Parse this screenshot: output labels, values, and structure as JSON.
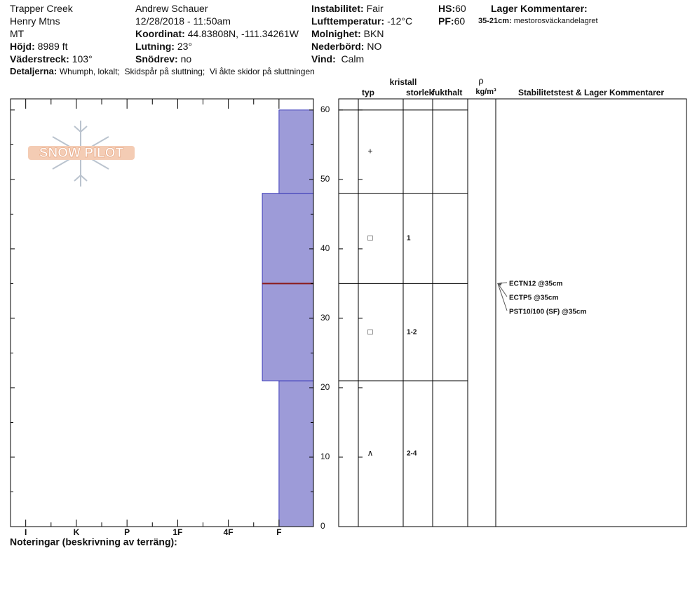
{
  "header": {
    "location": "Trapper Creek",
    "range": "Henry Mtns",
    "state": "MT",
    "elevation": {
      "label": "Höjd:",
      "value": "8989 ft"
    },
    "aspect": {
      "label": "Väderstreck:",
      "value": "103°"
    },
    "observer": "Andrew Schauer",
    "datetime": "12/28/2018 - 11:50am",
    "coordinates": {
      "label": "Koordinat:",
      "value": "44.83808N, -111.34261W"
    },
    "slope": {
      "label": "Lutning:",
      "value": "23°"
    },
    "wind_loading": {
      "label": "Snödrev:",
      "value": "no"
    },
    "stability": {
      "label": "Instabilitet:",
      "value": "Fair"
    },
    "air_temp": {
      "label": "Lufttemperatur:",
      "value": "-12°C"
    },
    "sky": {
      "label": "Molnighet:",
      "value": "BKN"
    },
    "precip": {
      "label": "Nederbörd:",
      "value": "NO"
    },
    "wind": {
      "label": "Vind:",
      "value": "Calm"
    },
    "hs": {
      "label": "HS:",
      "value": 60
    },
    "pf": {
      "label": "PF:",
      "value": 60
    },
    "layer_comments": {
      "title": "Lager Kommentarer:",
      "range": "35-21cm:",
      "text": "mestorosväckandelagret"
    },
    "details": {
      "label": "Detaljerna:",
      "value": "Whumph, lokalt;  Skidspår på sluttning;  Vi åkte skidor på sluttningen"
    }
  },
  "logo": "SNOW PILOT",
  "chart_data": {
    "type": "snow-profile",
    "ylim": [
      0,
      61.6
    ],
    "yticks": [
      0,
      10,
      20,
      30,
      40,
      50,
      60
    ],
    "yticks_minor": [
      5,
      15,
      25,
      35,
      45,
      55
    ],
    "xlim": [
      6.3,
      0.32
    ],
    "xticks": [
      {
        "value": 6,
        "label": "I"
      },
      {
        "value": 5,
        "label": "K"
      },
      {
        "value": 4,
        "label": "P"
      },
      {
        "value": 3,
        "label": "1F"
      },
      {
        "value": 2,
        "label": "4F"
      },
      {
        "value": 1,
        "label": "F"
      }
    ],
    "xticks_minor": [
      5.5,
      4.5,
      3.5,
      2.5,
      1.5
    ],
    "layer_color": "#9d9bd8",
    "edge_color": "#2020b0",
    "layers": [
      {
        "bottom": 0,
        "top": 21,
        "hardness": 1,
        "grain": "∧",
        "size": "2-4"
      },
      {
        "bottom": 21,
        "top": 35,
        "hardness": 1.33,
        "grain": "□",
        "size": "1-2"
      },
      {
        "bottom": 35,
        "top": 48,
        "hardness": 1.33,
        "grain": "□",
        "size": "1"
      },
      {
        "bottom": 48,
        "top": 60,
        "hardness": 1,
        "grain": "+"
      }
    ],
    "failure": 35,
    "failure_color": "#8b1a1a",
    "table_headers": {
      "crystal": "kristall",
      "type": "typ",
      "size": "storlek",
      "moisture": "fukthalt",
      "density_symbol": "ρ",
      "density_unit": "kg/m³",
      "comments": "Stabilitetstest & Lager Kommentarer"
    },
    "tests": [
      {
        "label": "ECTN12 @35cm",
        "depth": 35
      },
      {
        "label": "ECTP5 @35cm",
        "depth": 35
      },
      {
        "label": "PST10/100 (SF) @35cm",
        "depth": 35
      }
    ],
    "notes": "Noteringar (beskrivning av terräng):"
  }
}
